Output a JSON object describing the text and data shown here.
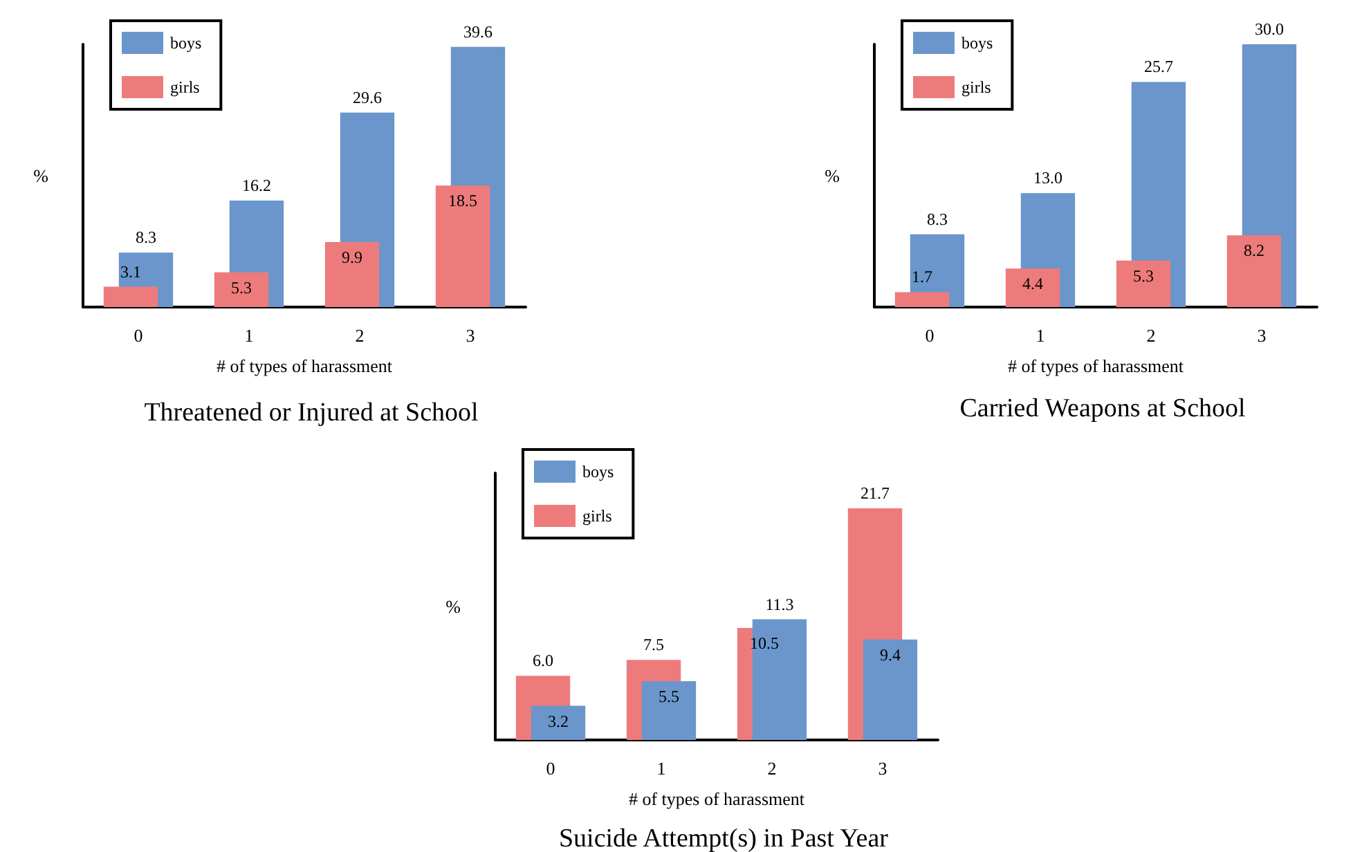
{
  "chart_data": [
    {
      "type": "bar",
      "title": "Threatened or Injured at School",
      "xlabel": "# of types of harassment",
      "ylabel": "%",
      "categories": [
        "0",
        "1",
        "2",
        "3"
      ],
      "series": [
        {
          "name": "boys",
          "color": "#6a96cc",
          "values": [
            8.3,
            16.2,
            29.6,
            39.6
          ]
        },
        {
          "name": "girls",
          "color": "#ee7b7b",
          "values": [
            3.1,
            5.3,
            9.9,
            18.5
          ]
        }
      ],
      "data_labels": true,
      "legend": "top left",
      "tick_labels": "x",
      "grid": false
    },
    {
      "type": "bar",
      "title": "Carried Weapons at School",
      "xlabel": "# of types of harassment",
      "ylabel": "%",
      "categories": [
        "0",
        "1",
        "2",
        "3"
      ],
      "series": [
        {
          "name": "boys",
          "color": "#6a96cc",
          "values": [
            8.3,
            13.0,
            25.7,
            30.0
          ],
          "value_labels": [
            "8.3",
            "13.0",
            "25.7",
            "30.0"
          ]
        },
        {
          "name": "girls",
          "color": "#ee7b7b",
          "values": [
            1.7,
            4.4,
            5.3,
            8.2
          ],
          "value_labels": [
            "1.7",
            "4.4",
            "5.3",
            "8.2"
          ]
        }
      ],
      "data_labels": true,
      "legend": "top left",
      "tick_labels": "x",
      "grid": false
    },
    {
      "type": "bar",
      "title": "Suicide Attempt(s) in Past Year",
      "xlabel": "# of types of harassment",
      "ylabel": "%",
      "categories": [
        "0",
        "1",
        "2",
        "3"
      ],
      "series": [
        {
          "name": "boys",
          "color": "#6a96cc",
          "values": [
            3.2,
            5.5,
            11.3,
            9.4
          ],
          "value_labels": [
            "3.2",
            "5.5",
            "11.3",
            "9.4"
          ]
        },
        {
          "name": "girls",
          "color": "#ee7b7b",
          "values": [
            6.0,
            7.5,
            10.5,
            21.7
          ],
          "value_labels": [
            "6.0",
            "7.5",
            "10.5",
            "21.7"
          ]
        }
      ],
      "data_labels": true,
      "legend": "top left",
      "tick_labels": "x",
      "grid": false
    }
  ]
}
